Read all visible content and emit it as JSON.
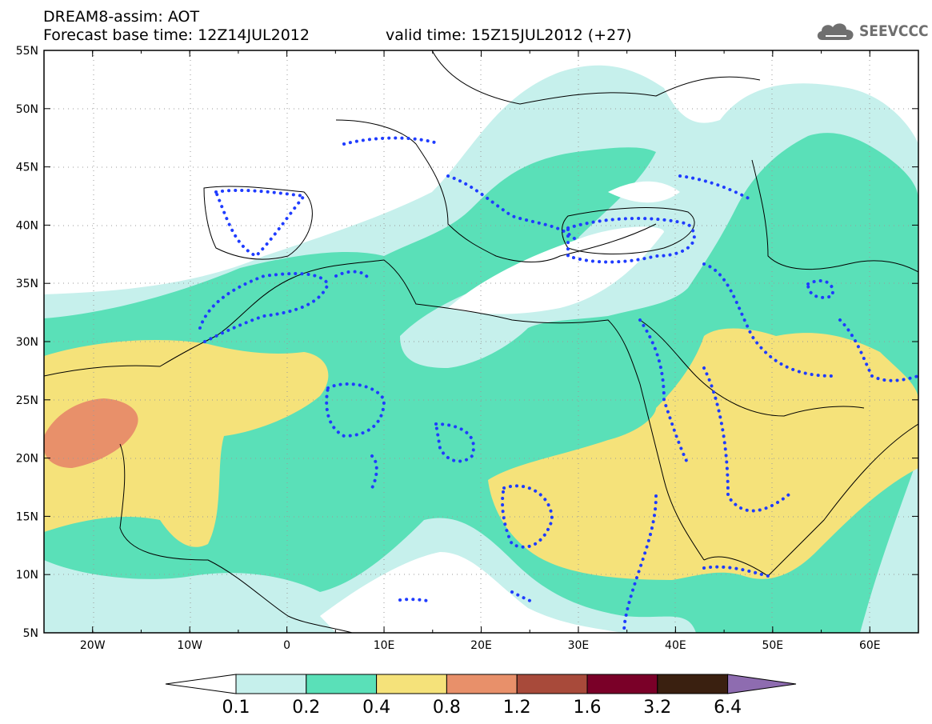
{
  "header": {
    "model_title": "DREAM8-assim: AOT",
    "base_time": "Forecast base time: 12Z14JUL2012",
    "valid_time": "valid time: 15Z15JUL2012 (+27)",
    "logo_text": "SEEVCCC",
    "logo_icon": "cloud-logo-icon"
  },
  "map": {
    "projection": "lat-lon",
    "lon_range": [
      -25,
      65
    ],
    "lat_range": [
      5,
      55
    ],
    "lon_ticks": [
      "20W",
      "10W",
      "0",
      "10E",
      "20E",
      "30E",
      "40E",
      "50E",
      "60E"
    ],
    "lat_ticks": [
      "55N",
      "50N",
      "45N",
      "40N",
      "35N",
      "30N",
      "25N",
      "20N",
      "15N",
      "10N",
      "5N"
    ],
    "gridlines": "dotted",
    "dotted_contour_color": "#1f3cff",
    "coastline_color": "#000000"
  },
  "colorbar": {
    "levels": [
      "0.1",
      "0.2",
      "0.4",
      "0.8",
      "1.2",
      "1.6",
      "3.2",
      "6.4"
    ],
    "colors": [
      "#c6f0ec",
      "#5ae0b8",
      "#f5e27a",
      "#e8906a",
      "#a84a3a",
      "#7a0028",
      "#3a2010",
      "#8e6cb0"
    ],
    "under_color": "#ffffff",
    "over_color": "#8e6cb0"
  }
}
